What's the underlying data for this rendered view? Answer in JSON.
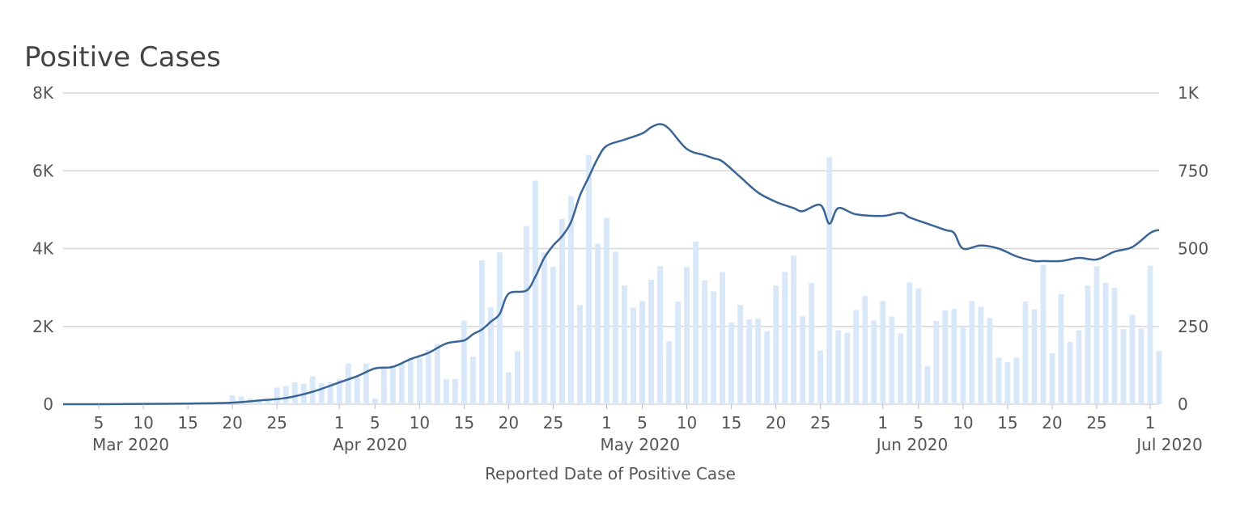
{
  "title": "Positive Cases",
  "colors": {
    "bar": "#d8e8f8",
    "line": "#3a6493",
    "grid": "#d6d6d6",
    "text": "#555555"
  },
  "chart_data": {
    "type": "bar",
    "title": "Positive Cases",
    "xlabel": "Reported Date of Positive Case",
    "x_range": [
      "2020-03-01",
      "2020-07-02"
    ],
    "left_axis": {
      "ylim": [
        0,
        8000
      ],
      "ticks": [
        0,
        2000,
        4000,
        6000,
        8000
      ],
      "tick_labels": [
        "0",
        "2K",
        "4K",
        "6K",
        "8K"
      ]
    },
    "right_axis": {
      "ylim": [
        0,
        1000
      ],
      "ticks": [
        0,
        250,
        500,
        750,
        1000
      ],
      "tick_labels": [
        "0",
        "250",
        "500",
        "750",
        "1K"
      ]
    },
    "x_ticks": [
      {
        "date": "2020-03-05",
        "label": "5",
        "month_label": "Mar 2020"
      },
      {
        "date": "2020-03-10",
        "label": "10"
      },
      {
        "date": "2020-03-15",
        "label": "15"
      },
      {
        "date": "2020-03-20",
        "label": "20"
      },
      {
        "date": "2020-03-25",
        "label": "25"
      },
      {
        "date": "2020-04-01",
        "label": "1",
        "month_label": "Apr 2020"
      },
      {
        "date": "2020-04-05",
        "label": "5"
      },
      {
        "date": "2020-04-10",
        "label": "10"
      },
      {
        "date": "2020-04-15",
        "label": "15"
      },
      {
        "date": "2020-04-20",
        "label": "20"
      },
      {
        "date": "2020-04-25",
        "label": "25"
      },
      {
        "date": "2020-05-01",
        "label": "1",
        "month_label": "May 2020"
      },
      {
        "date": "2020-05-05",
        "label": "5"
      },
      {
        "date": "2020-05-10",
        "label": "10"
      },
      {
        "date": "2020-05-15",
        "label": "15"
      },
      {
        "date": "2020-05-20",
        "label": "20"
      },
      {
        "date": "2020-05-25",
        "label": "25"
      },
      {
        "date": "2020-06-01",
        "label": "1",
        "month_label": "Jun 2020"
      },
      {
        "date": "2020-06-05",
        "label": "5"
      },
      {
        "date": "2020-06-10",
        "label": "10"
      },
      {
        "date": "2020-06-15",
        "label": "15"
      },
      {
        "date": "2020-06-20",
        "label": "20"
      },
      {
        "date": "2020-06-25",
        "label": "25"
      },
      {
        "date": "2020-07-01",
        "label": "1",
        "month_label": "Jul 2020"
      }
    ],
    "grid": true,
    "series": [
      {
        "type": "bar",
        "axis": "left",
        "x": [
          "2020-03-13",
          "2020-03-14",
          "2020-03-15",
          "2020-03-16",
          "2020-03-17",
          "2020-03-18",
          "2020-03-19",
          "2020-03-20",
          "2020-03-21",
          "2020-03-22",
          "2020-03-23",
          "2020-03-24",
          "2020-03-25",
          "2020-03-26",
          "2020-03-27",
          "2020-03-28",
          "2020-03-29",
          "2020-03-30",
          "2020-03-31",
          "2020-04-01",
          "2020-04-02",
          "2020-04-03",
          "2020-04-04",
          "2020-04-05",
          "2020-04-06",
          "2020-04-07",
          "2020-04-08",
          "2020-04-09",
          "2020-04-10",
          "2020-04-11",
          "2020-04-12",
          "2020-04-13",
          "2020-04-14",
          "2020-04-15",
          "2020-04-16",
          "2020-04-17",
          "2020-04-18",
          "2020-04-19",
          "2020-04-20",
          "2020-04-21",
          "2020-04-22",
          "2020-04-23",
          "2020-04-24",
          "2020-04-25",
          "2020-04-26",
          "2020-04-27",
          "2020-04-28",
          "2020-04-29",
          "2020-04-30",
          "2020-05-01",
          "2020-05-02",
          "2020-05-03",
          "2020-05-04",
          "2020-05-05",
          "2020-05-06",
          "2020-05-07",
          "2020-05-08",
          "2020-05-09",
          "2020-05-10",
          "2020-05-11",
          "2020-05-12",
          "2020-05-13",
          "2020-05-14",
          "2020-05-15",
          "2020-05-16",
          "2020-05-17",
          "2020-05-18",
          "2020-05-19",
          "2020-05-20",
          "2020-05-21",
          "2020-05-22",
          "2020-05-23",
          "2020-05-24",
          "2020-05-25",
          "2020-05-26",
          "2020-05-27",
          "2020-05-28",
          "2020-05-29",
          "2020-05-30",
          "2020-05-31",
          "2020-06-01",
          "2020-06-02",
          "2020-06-03",
          "2020-06-04",
          "2020-06-05",
          "2020-06-06",
          "2020-06-07",
          "2020-06-08",
          "2020-06-09",
          "2020-06-10",
          "2020-06-11",
          "2020-06-12",
          "2020-06-13",
          "2020-06-14",
          "2020-06-15",
          "2020-06-16",
          "2020-06-17",
          "2020-06-18",
          "2020-06-19",
          "2020-06-20",
          "2020-06-21",
          "2020-06-22",
          "2020-06-23",
          "2020-06-24",
          "2020-06-25",
          "2020-06-26",
          "2020-06-27",
          "2020-06-28",
          "2020-06-29",
          "2020-06-30",
          "2020-07-01",
          "2020-07-02"
        ],
        "values": [
          10,
          10,
          20,
          30,
          40,
          50,
          60,
          230,
          200,
          150,
          120,
          120,
          430,
          470,
          560,
          520,
          720,
          540,
          560,
          650,
          1050,
          700,
          1050,
          150,
          950,
          1000,
          1050,
          1200,
          1200,
          1400,
          1550,
          650,
          650,
          2150,
          1220,
          3700,
          2500,
          3900,
          820,
          1360,
          4580,
          5750,
          3900,
          3530,
          4760,
          5350,
          2550,
          6410,
          4130,
          4790,
          3920,
          3050,
          2480,
          2650,
          3200,
          3550,
          1620,
          2640,
          3530,
          4180,
          3180,
          2900,
          3400,
          2100,
          2550,
          2180,
          2200,
          1880,
          3050,
          3400,
          3820,
          2260,
          3120,
          1380,
          6350,
          1900,
          1840,
          2420,
          2780,
          2150,
          2650,
          2260,
          1820,
          3130,
          2980,
          980,
          2140,
          2410,
          2450,
          2000,
          2650,
          2500,
          2220,
          1200,
          1080,
          1200,
          2640,
          2440,
          3580,
          1310,
          2830,
          1600,
          1900,
          3050,
          3550,
          3120,
          2990,
          1930,
          2300,
          1940,
          3560,
          1370
        ]
      },
      {
        "type": "line",
        "axis": "right",
        "name": "",
        "x": [
          "2020-03-01",
          "2020-03-05",
          "2020-03-10",
          "2020-03-15",
          "2020-03-20",
          "2020-03-23",
          "2020-03-26",
          "2020-03-29",
          "2020-04-01",
          "2020-04-03",
          "2020-04-05",
          "2020-04-07",
          "2020-04-09",
          "2020-04-11",
          "2020-04-13",
          "2020-04-15",
          "2020-04-16",
          "2020-04-17",
          "2020-04-18",
          "2020-04-19",
          "2020-04-20",
          "2020-04-22",
          "2020-04-23",
          "2020-04-24",
          "2020-04-25",
          "2020-04-26",
          "2020-04-27",
          "2020-04-28",
          "2020-04-29",
          "2020-04-30",
          "2020-05-01",
          "2020-05-03",
          "2020-05-05",
          "2020-05-06",
          "2020-05-07",
          "2020-05-08",
          "2020-05-10",
          "2020-05-12",
          "2020-05-13",
          "2020-05-14",
          "2020-05-16",
          "2020-05-18",
          "2020-05-20",
          "2020-05-22",
          "2020-05-23",
          "2020-05-25",
          "2020-05-26",
          "2020-05-27",
          "2020-05-29",
          "2020-06-01",
          "2020-06-03",
          "2020-06-04",
          "2020-06-06",
          "2020-06-08",
          "2020-06-09",
          "2020-06-10",
          "2020-06-12",
          "2020-06-14",
          "2020-06-16",
          "2020-06-18",
          "2020-06-19",
          "2020-06-21",
          "2020-06-23",
          "2020-06-25",
          "2020-06-27",
          "2020-06-29",
          "2020-07-01",
          "2020-07-02"
        ],
        "values": [
          0,
          0,
          1,
          2,
          5,
          12,
          20,
          40,
          70,
          90,
          115,
          120,
          145,
          165,
          195,
          205,
          225,
          240,
          265,
          290,
          355,
          365,
          410,
          470,
          510,
          540,
          585,
          670,
          730,
          790,
          830,
          850,
          870,
          890,
          900,
          885,
          820,
          800,
          790,
          780,
          730,
          680,
          650,
          630,
          620,
          640,
          580,
          630,
          610,
          605,
          615,
          600,
          580,
          560,
          550,
          500,
          510,
          500,
          475,
          460,
          460,
          460,
          470,
          465,
          490,
          505,
          550,
          560
        ]
      }
    ]
  }
}
